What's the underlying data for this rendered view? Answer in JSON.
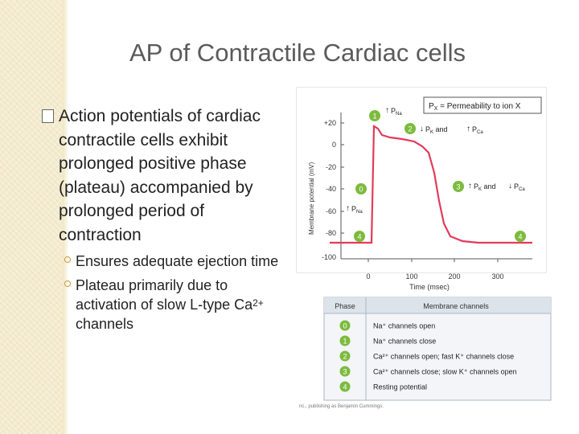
{
  "slide": {
    "title": "AP of Contractile Cardiac cells",
    "bullet": "Action potentials of cardiac contractile cells exhibit prolonged positive phase (plateau) accompanied by prolonged period of contraction",
    "subbullets": [
      "Ensures adequate ejection time",
      "Plateau primarily due to activation of slow L-type Ca",
      "channels"
    ],
    "superscript": "2+"
  },
  "figure": {
    "legend_box": "P",
    "legend_box_sub": "X",
    "legend_box_rest": " = Permeability to ion X",
    "ylabel": "Membrane potential (mV)",
    "xlabel": "Time (msec)",
    "yticks": [
      "+20",
      "0",
      "-20",
      "-40",
      "-60",
      "-80",
      "-100"
    ],
    "xticks": [
      "0",
      "100",
      "200",
      "300"
    ],
    "phase_markers": [
      "1",
      "2",
      "0",
      "3",
      "4",
      "4"
    ],
    "annotations": {
      "p1_main": "P",
      "p1_sub": "Na",
      "p2_a": "P",
      "p2_a_sub": "K",
      "p2_and": " and ",
      "p2_b": "P",
      "p2_b_sub": "Ca",
      "p3_a": "P",
      "p3_a_sub": "K",
      "p3_and": " and ",
      "p3_b": "P",
      "p3_b_sub": "Ca",
      "p0_main": "P",
      "p0_sub": "Na"
    },
    "table": {
      "headers": [
        "Phase",
        "Membrane channels"
      ],
      "rows": [
        {
          "phase": "0",
          "text": "Na⁺ channels open"
        },
        {
          "phase": "1",
          "text": "Na⁺ channels close"
        },
        {
          "phase": "2",
          "text": "Ca²⁺ channels open; fast K⁺ channels close"
        },
        {
          "phase": "3",
          "text": "Ca²⁺ channels close; slow K⁺ channels open"
        },
        {
          "phase": "4",
          "text": "Resting potential"
        }
      ]
    },
    "credit": "nc., publishing as Benjamin Cummings."
  },
  "colors": {
    "trace": "#e23b5a",
    "marker": "#7cbb3e",
    "table_header": "#dde3ea",
    "table_border": "#a9b6c6"
  }
}
